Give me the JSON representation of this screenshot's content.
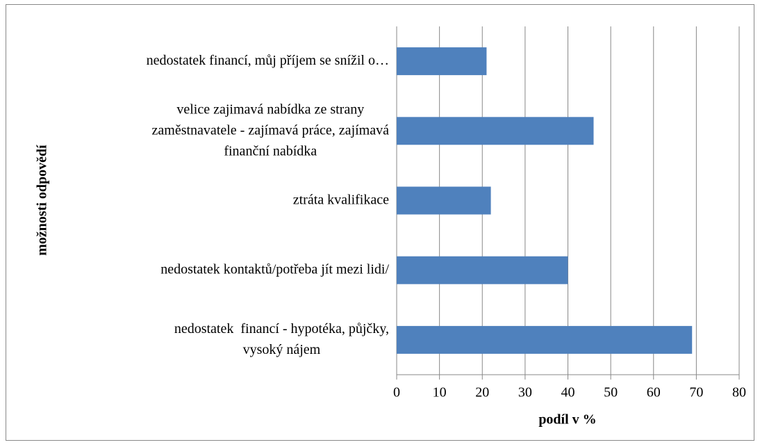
{
  "chart_data": {
    "type": "bar",
    "orientation": "horizontal",
    "categories": [
      "nedostatek financí, můj příjem se snížil o…",
      "velice zajimavá nabídka ze strany\nzaměstnavatele - zajímavá práce, zajímavá\nfinanční nabídka",
      "ztráta kvalifikace",
      "nedostatek kontaktů/potřeba jít mezi lidi/",
      "nedostatek  financí - hypotéka, půjčky,\nvysoký nájem"
    ],
    "values": [
      21,
      46,
      22,
      40,
      69
    ],
    "color": "#4f81bd",
    "xlabel": "podíl v %",
    "ylabel": "možnosti odpovědí",
    "xlim": [
      0,
      80
    ],
    "xticks": [
      0,
      10,
      20,
      30,
      40,
      50,
      60,
      70,
      80
    ],
    "grid": true
  }
}
